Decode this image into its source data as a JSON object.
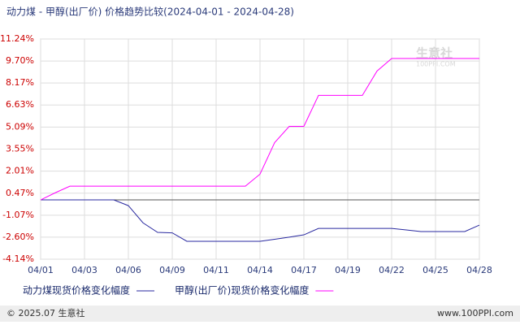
{
  "chart_data": {
    "type": "line",
    "title": "动力煤 - 甲醇(出厂价) 价格趋势比较(2024-04-01 - 2024-04-28)",
    "categories": [
      "04/01",
      null,
      null,
      "04/03",
      null,
      null,
      "04/06",
      null,
      null,
      "04/09",
      null,
      null,
      "04/11",
      null,
      null,
      "04/14",
      null,
      null,
      "04/17",
      null,
      null,
      "04/19",
      null,
      null,
      "04/22",
      null,
      null,
      "04/25",
      null,
      null,
      "04/28"
    ],
    "series": [
      {
        "name": "动力煤现货价格变化幅度",
        "color": "#2a2aa0",
        "values": [
          0,
          0,
          0,
          0,
          0,
          0,
          -0.4,
          -1.6,
          -2.27,
          -2.3,
          -2.89,
          -2.89,
          -2.89,
          -2.89,
          -2.89,
          -2.89,
          -2.75,
          -2.6,
          -2.44,
          -1.99,
          -1.99,
          -1.99,
          -1.99,
          -1.99,
          -1.99,
          -2.1,
          -2.21,
          -2.21,
          -2.21,
          -2.21,
          -1.76
        ]
      },
      {
        "name": "甲醇(出厂价)现货价格变化幅度",
        "color": "#ff00ff",
        "values": [
          0,
          0.5,
          0.96,
          0.96,
          0.96,
          0.96,
          0.96,
          0.96,
          0.96,
          0.96,
          0.96,
          0.96,
          0.96,
          0.96,
          0.96,
          1.8,
          4.0,
          5.14,
          5.14,
          7.3,
          7.3,
          7.3,
          7.3,
          9.0,
          9.88,
          9.88,
          9.88,
          9.88,
          9.88,
          9.88,
          9.88
        ]
      }
    ],
    "ylim": [
      -4.14,
      11.24
    ],
    "yticks": [
      {
        "value": -4.14,
        "label": "-4.14%"
      },
      {
        "value": -2.6,
        "label": "-2.60%"
      },
      {
        "value": -1.07,
        "label": "-1.07%"
      },
      {
        "value": 0.47,
        "label": "0.47%"
      },
      {
        "value": 2.01,
        "label": "2.01%"
      },
      {
        "value": 3.55,
        "label": "3.55%"
      },
      {
        "value": 5.09,
        "label": "5.09%"
      },
      {
        "value": 6.63,
        "label": "6.63%"
      },
      {
        "value": 8.17,
        "label": "8.17%"
      },
      {
        "value": 9.7,
        "label": "9.70%"
      },
      {
        "value": 11.24,
        "label": "11.24%"
      }
    ],
    "grid": true
  },
  "watermark": {
    "brand": "生意社",
    "site": "100PPI.COM"
  },
  "footer": {
    "copyright": "© 2025.07 生意社",
    "site": "www.100PPI.com"
  }
}
